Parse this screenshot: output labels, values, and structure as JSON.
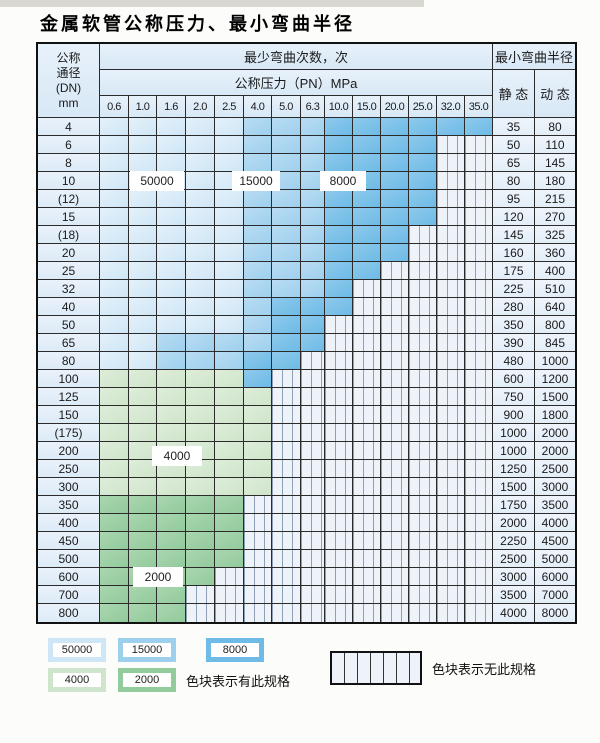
{
  "title": "金属软管公称压力、最小弯曲半径",
  "table": {
    "header": {
      "dn_label_lines": [
        "公称",
        "通径",
        "(DN)",
        "mm"
      ],
      "cycles_label": "最少弯曲次数，次",
      "pressure_label": "公称压力（PN）MPa",
      "pressure_columns": [
        "0.6",
        "1.0",
        "1.6",
        "2.0",
        "2.5",
        "4.0",
        "5.0",
        "6.3",
        "10.0",
        "15.0",
        "20.0",
        "25.0",
        "32.0",
        "35.0"
      ],
      "radius_label": "最小弯曲半径",
      "static_label": "静 态",
      "dynamic_label": "动 态"
    },
    "rows": [
      {
        "dn": "4",
        "cells": [
          "50000",
          "50000",
          "50000",
          "50000",
          "50000",
          "15000",
          "15000",
          "15000",
          "8000",
          "8000",
          "8000",
          "8000",
          "8000",
          "8000"
        ],
        "static": "35",
        "dynamic": "80"
      },
      {
        "dn": "6",
        "cells": [
          "50000",
          "50000",
          "50000",
          "50000",
          "50000",
          "15000",
          "15000",
          "15000",
          "8000",
          "8000",
          "8000",
          "8000",
          "none",
          "none"
        ],
        "static": "50",
        "dynamic": "110"
      },
      {
        "dn": "8",
        "cells": [
          "50000",
          "50000",
          "50000",
          "50000",
          "50000",
          "15000",
          "15000",
          "15000",
          "8000",
          "8000",
          "8000",
          "8000",
          "none",
          "none"
        ],
        "static": "65",
        "dynamic": "145"
      },
      {
        "dn": "10",
        "cells": [
          "50000",
          "50000",
          "50000",
          "50000",
          "50000",
          "15000",
          "15000",
          "15000",
          "8000",
          "8000",
          "8000",
          "8000",
          "none",
          "none"
        ],
        "static": "80",
        "dynamic": "180"
      },
      {
        "dn": "(12)",
        "cells": [
          "50000",
          "50000",
          "50000",
          "50000",
          "50000",
          "15000",
          "15000",
          "15000",
          "8000",
          "8000",
          "8000",
          "8000",
          "none",
          "none"
        ],
        "static": "95",
        "dynamic": "215"
      },
      {
        "dn": "15",
        "cells": [
          "50000",
          "50000",
          "50000",
          "50000",
          "50000",
          "15000",
          "15000",
          "15000",
          "8000",
          "8000",
          "8000",
          "8000",
          "none",
          "none"
        ],
        "static": "120",
        "dynamic": "270"
      },
      {
        "dn": "(18)",
        "cells": [
          "50000",
          "50000",
          "50000",
          "50000",
          "50000",
          "15000",
          "15000",
          "15000",
          "8000",
          "8000",
          "8000",
          "none",
          "none",
          "none"
        ],
        "static": "145",
        "dynamic": "325"
      },
      {
        "dn": "20",
        "cells": [
          "50000",
          "50000",
          "50000",
          "50000",
          "50000",
          "15000",
          "15000",
          "15000",
          "8000",
          "8000",
          "8000",
          "none",
          "none",
          "none"
        ],
        "static": "160",
        "dynamic": "360"
      },
      {
        "dn": "25",
        "cells": [
          "50000",
          "50000",
          "50000",
          "50000",
          "50000",
          "15000",
          "15000",
          "15000",
          "8000",
          "8000",
          "none",
          "none",
          "none",
          "none"
        ],
        "static": "175",
        "dynamic": "400"
      },
      {
        "dn": "32",
        "cells": [
          "50000",
          "50000",
          "50000",
          "50000",
          "50000",
          "15000",
          "15000",
          "15000",
          "8000",
          "none",
          "none",
          "none",
          "none",
          "none"
        ],
        "static": "225",
        "dynamic": "510"
      },
      {
        "dn": "40",
        "cells": [
          "50000",
          "50000",
          "50000",
          "50000",
          "50000",
          "15000",
          "8000",
          "8000",
          "8000",
          "none",
          "none",
          "none",
          "none",
          "none"
        ],
        "static": "280",
        "dynamic": "640"
      },
      {
        "dn": "50",
        "cells": [
          "50000",
          "50000",
          "50000",
          "50000",
          "50000",
          "15000",
          "8000",
          "8000",
          "none",
          "none",
          "none",
          "none",
          "none",
          "none"
        ],
        "static": "350",
        "dynamic": "800"
      },
      {
        "dn": "65",
        "cells": [
          "50000",
          "50000",
          "15000",
          "15000",
          "15000",
          "15000",
          "8000",
          "8000",
          "none",
          "none",
          "none",
          "none",
          "none",
          "none"
        ],
        "static": "390",
        "dynamic": "845"
      },
      {
        "dn": "80",
        "cells": [
          "50000",
          "50000",
          "15000",
          "15000",
          "15000",
          "8000",
          "8000",
          "none",
          "none",
          "none",
          "none",
          "none",
          "none",
          "none"
        ],
        "static": "480",
        "dynamic": "1000"
      },
      {
        "dn": "100",
        "cells": [
          "4000",
          "4000",
          "4000",
          "4000",
          "4000",
          "8000",
          "none",
          "none",
          "none",
          "none",
          "none",
          "none",
          "none",
          "none"
        ],
        "static": "600",
        "dynamic": "1200"
      },
      {
        "dn": "125",
        "cells": [
          "4000",
          "4000",
          "4000",
          "4000",
          "4000",
          "4000",
          "none",
          "none",
          "none",
          "none",
          "none",
          "none",
          "none",
          "none"
        ],
        "static": "750",
        "dynamic": "1500"
      },
      {
        "dn": "150",
        "cells": [
          "4000",
          "4000",
          "4000",
          "4000",
          "4000",
          "4000",
          "none",
          "none",
          "none",
          "none",
          "none",
          "none",
          "none",
          "none"
        ],
        "static": "900",
        "dynamic": "1800"
      },
      {
        "dn": "(175)",
        "cells": [
          "4000",
          "4000",
          "4000",
          "4000",
          "4000",
          "4000",
          "none",
          "none",
          "none",
          "none",
          "none",
          "none",
          "none",
          "none"
        ],
        "static": "1000",
        "dynamic": "2000"
      },
      {
        "dn": "200",
        "cells": [
          "4000",
          "4000",
          "4000",
          "4000",
          "4000",
          "4000",
          "none",
          "none",
          "none",
          "none",
          "none",
          "none",
          "none",
          "none"
        ],
        "static": "1000",
        "dynamic": "2000"
      },
      {
        "dn": "250",
        "cells": [
          "4000",
          "4000",
          "4000",
          "4000",
          "4000",
          "4000",
          "none",
          "none",
          "none",
          "none",
          "none",
          "none",
          "none",
          "none"
        ],
        "static": "1250",
        "dynamic": "2500"
      },
      {
        "dn": "300",
        "cells": [
          "4000",
          "4000",
          "4000",
          "4000",
          "4000",
          "4000",
          "none",
          "none",
          "none",
          "none",
          "none",
          "none",
          "none",
          "none"
        ],
        "static": "1500",
        "dynamic": "3000"
      },
      {
        "dn": "350",
        "cells": [
          "2000",
          "2000",
          "2000",
          "2000",
          "2000",
          "none",
          "none",
          "none",
          "none",
          "none",
          "none",
          "none",
          "none",
          "none"
        ],
        "static": "1750",
        "dynamic": "3500"
      },
      {
        "dn": "400",
        "cells": [
          "2000",
          "2000",
          "2000",
          "2000",
          "2000",
          "none",
          "none",
          "none",
          "none",
          "none",
          "none",
          "none",
          "none",
          "none"
        ],
        "static": "2000",
        "dynamic": "4000"
      },
      {
        "dn": "450",
        "cells": [
          "2000",
          "2000",
          "2000",
          "2000",
          "2000",
          "none",
          "none",
          "none",
          "none",
          "none",
          "none",
          "none",
          "none",
          "none"
        ],
        "static": "2250",
        "dynamic": "4500"
      },
      {
        "dn": "500",
        "cells": [
          "2000",
          "2000",
          "2000",
          "2000",
          "2000",
          "none",
          "none",
          "none",
          "none",
          "none",
          "none",
          "none",
          "none",
          "none"
        ],
        "static": "2500",
        "dynamic": "5000"
      },
      {
        "dn": "600",
        "cells": [
          "2000",
          "2000",
          "2000",
          "2000",
          "none",
          "none",
          "none",
          "none",
          "none",
          "none",
          "none",
          "none",
          "none",
          "none"
        ],
        "static": "3000",
        "dynamic": "6000"
      },
      {
        "dn": "700",
        "cells": [
          "2000",
          "2000",
          "2000",
          "none",
          "none",
          "none",
          "none",
          "none",
          "none",
          "none",
          "none",
          "none",
          "none",
          "none"
        ],
        "static": "3500",
        "dynamic": "7000"
      },
      {
        "dn": "800",
        "cells": [
          "2000",
          "2000",
          "2000",
          "none",
          "none",
          "none",
          "none",
          "none",
          "none",
          "none",
          "none",
          "none",
          "none",
          "none"
        ],
        "static": "4000",
        "dynamic": "8000"
      }
    ],
    "region_labels": [
      {
        "id": "c50000",
        "text": "50000"
      },
      {
        "id": "c15000",
        "text": "15000"
      },
      {
        "id": "c8000",
        "text": "8000"
      },
      {
        "id": "c4000",
        "text": "4000"
      },
      {
        "id": "c2000",
        "text": "2000"
      }
    ]
  },
  "legend": {
    "items": [
      {
        "value": "50000"
      },
      {
        "value": "15000"
      },
      {
        "value": "8000"
      },
      {
        "value": "4000"
      },
      {
        "value": "2000"
      }
    ],
    "has_spec_text": "色块表示有此规格",
    "no_spec_text": "色块表示无此规格"
  },
  "colors": {
    "c50000": "#cfe6f6",
    "c15000": "#9ed0ee",
    "c8000": "#6dbbe6",
    "c4000": "#cfe5cb",
    "c2000": "#92cb9c"
  }
}
